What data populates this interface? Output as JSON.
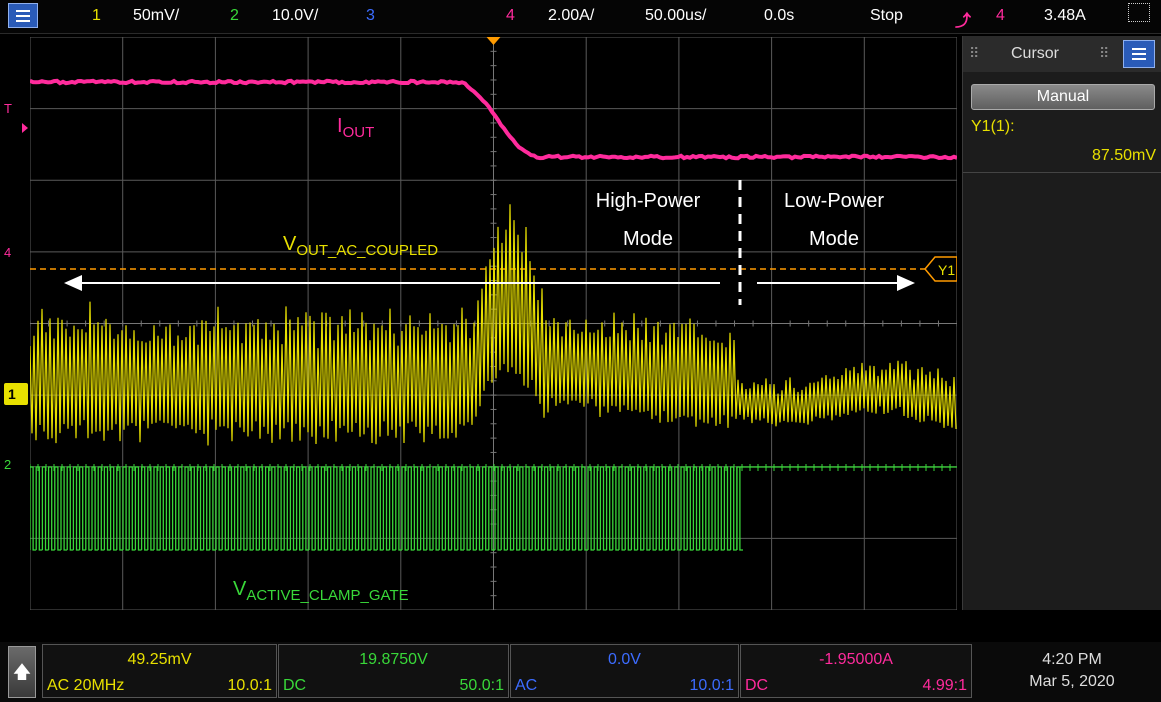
{
  "topbar": {
    "ch1_num": "1",
    "ch1_scale": "50mV/",
    "ch2_num": "2",
    "ch2_scale": "10.0V/",
    "ch3_num": "3",
    "ch4_num": "4",
    "ch4_scale": "2.00A/",
    "timebase": "50.00us/",
    "delay": "0.0s",
    "run_state": "Stop",
    "trig_ch": "4",
    "trig_level": "3.48A"
  },
  "annotations": {
    "iout_main": "I",
    "iout_sub": "OUT",
    "vout_main": "V",
    "vout_sub": "OUT_AC_COUPLED",
    "vgate_main": "V",
    "vgate_sub": "ACTIVE_CLAMP_GATE",
    "high_power_l1": "High-Power",
    "high_power_l2": "Mode",
    "low_power_l1": "Low-Power",
    "low_power_l2": "Mode",
    "y1_marker": "Y1",
    "ch4_marker": "4",
    "ch1_marker": "1",
    "ch2_marker": "2",
    "trig_marker": "T"
  },
  "cursor_panel": {
    "title": "Cursor",
    "mode": "Manual",
    "y1_label": "Y1(1):",
    "y1_value": "87.50mV"
  },
  "channels": [
    {
      "value": "49.25mV",
      "coupling": "AC 20MHz",
      "probe": "10.0:1",
      "color": "#e8e000"
    },
    {
      "value": "19.8750V",
      "coupling": "DC",
      "probe": "50.0:1",
      "color": "#39d839"
    },
    {
      "value": "0.0V",
      "coupling": "AC",
      "probe": "10.0:1",
      "color": "#3c6cff"
    },
    {
      "value": "-1.95000A",
      "coupling": "DC",
      "probe": "4.99:1",
      "color": "#ff2b9c"
    }
  ],
  "clock": {
    "time": "4:20 PM",
    "date": "Mar 5, 2020"
  },
  "colors": {
    "ch1": "#e8e000",
    "ch2": "#39d839",
    "ch3": "#3c6cff",
    "ch4": "#ff2b9c",
    "grid": "#5a5a5a",
    "trigger": "#ff9b00"
  }
}
